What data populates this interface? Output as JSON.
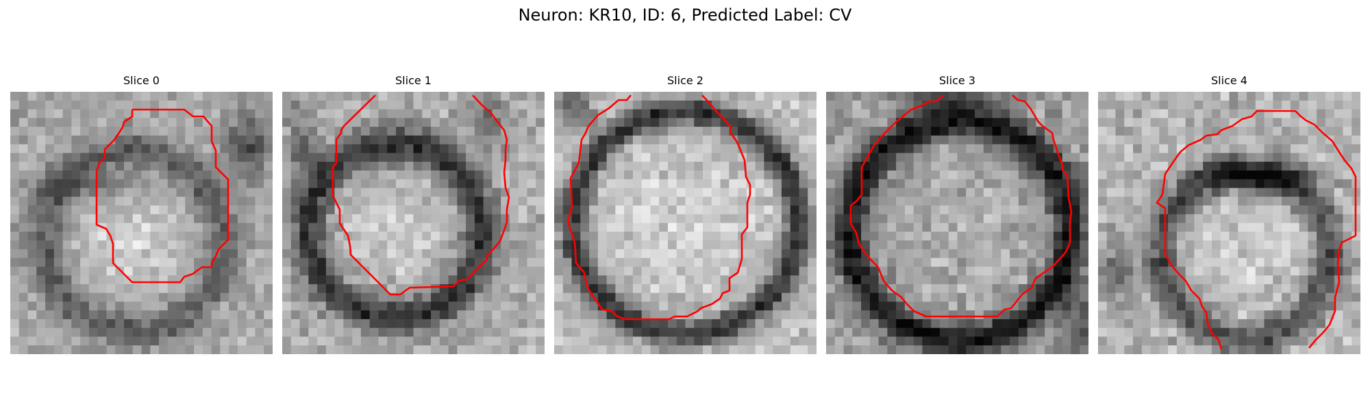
{
  "title": "Neuron: KR10, ID: 6, Predicted Label: CV",
  "contour_color": "#ff0000",
  "slices": [
    {
      "label": "Slice 0"
    },
    {
      "label": "Slice 1"
    },
    {
      "label": "Slice 2"
    },
    {
      "label": "Slice 3"
    },
    {
      "label": "Slice 4"
    }
  ]
}
